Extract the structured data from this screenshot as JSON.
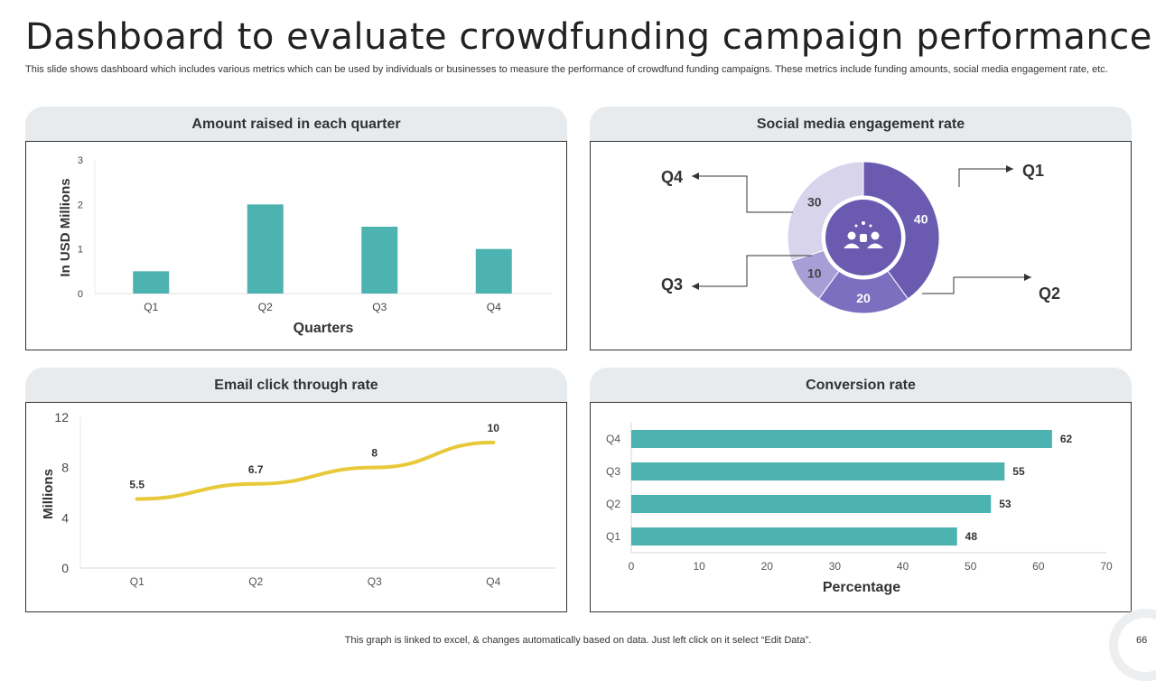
{
  "header": {
    "title": "Dashboard to evaluate crowdfunding campaign performance",
    "subtitle": "This slide shows dashboard which includes various metrics which can be used by individuals or businesses to measure the performance of crowdfund funding campaigns. These metrics include  funding amounts, social media engagement rate, etc."
  },
  "panels": {
    "amount": {
      "title": "Amount raised in each quarter"
    },
    "social": {
      "title": "Social media engagement rate"
    },
    "email": {
      "title": "Email click through rate"
    },
    "conversion": {
      "title": "Conversion rate"
    }
  },
  "colors": {
    "teal": "#4db3b0",
    "yellow": "#e8c93a",
    "purple_dark": "#6b5bb0",
    "purple_mid": "#7d6fc0",
    "purple_light": "#a89ed6",
    "purple_pale": "#d8d4ec"
  },
  "chart_data": [
    {
      "id": "amount",
      "type": "bar",
      "title": "Amount raised in each quarter",
      "categories": [
        "Q1",
        "Q2",
        "Q3",
        "Q4"
      ],
      "values": [
        0.5,
        2,
        1.5,
        1
      ],
      "xlabel": "Quarters",
      "ylabel": "In USD Millions",
      "ylim": [
        0,
        3
      ],
      "yticks": [
        "0",
        "1",
        "2",
        "3"
      ]
    },
    {
      "id": "social",
      "type": "pie",
      "title": "Social media engagement rate",
      "slices": [
        {
          "label": "Q1",
          "value": 40
        },
        {
          "label": "Q2",
          "value": 20
        },
        {
          "label": "Q3",
          "value": 10
        },
        {
          "label": "Q4",
          "value": 30
        }
      ]
    },
    {
      "id": "email",
      "type": "line",
      "title": "Email click through rate",
      "categories": [
        "Q1",
        "Q2",
        "Q3",
        "Q4"
      ],
      "values": [
        5.5,
        6.7,
        8,
        10
      ],
      "value_labels": [
        "5.5",
        "6.7",
        "8",
        "10"
      ],
      "ylabel": "Millions",
      "ylim": [
        0,
        12
      ],
      "yticks": [
        "0",
        "4",
        "8",
        "12"
      ]
    },
    {
      "id": "conversion",
      "type": "bar",
      "orientation": "horizontal",
      "title": "Conversion rate",
      "categories": [
        "Q1",
        "Q2",
        "Q3",
        "Q4"
      ],
      "values": [
        48,
        53,
        55,
        62
      ],
      "xlabel": "Percentage",
      "xlim": [
        0,
        70
      ],
      "xticks": [
        "0",
        "10",
        "20",
        "30",
        "40",
        "50",
        "60",
        "70"
      ]
    }
  ],
  "footer": {
    "note": "This graph is linked to excel, & changes automatically based on data. Just left click on it select “Edit Data”.",
    "page_number": "66"
  }
}
